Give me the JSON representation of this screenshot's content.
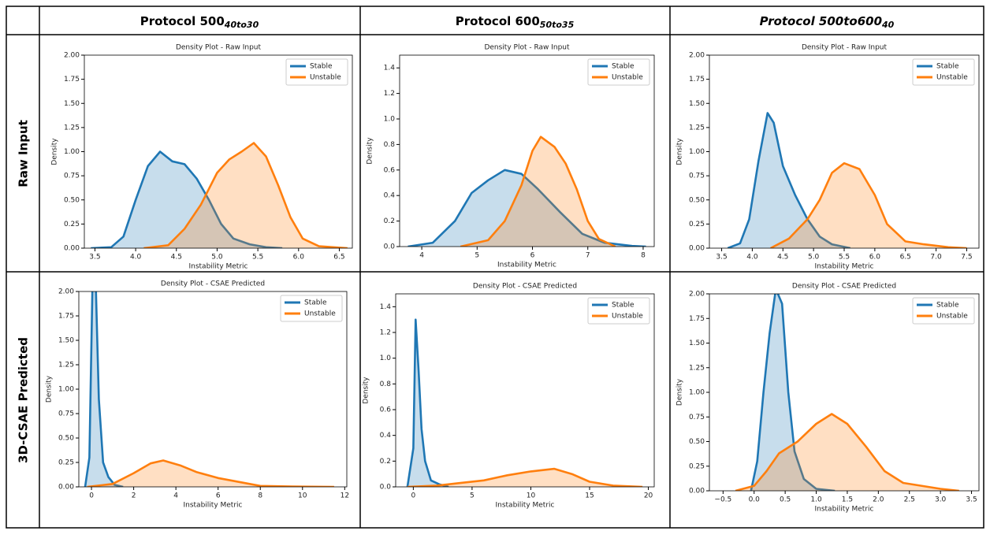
{
  "column_headers": [
    {
      "base": "Protocol 500",
      "sub": "40to30"
    },
    {
      "base": "Protocol 600",
      "sub": "50to35"
    },
    {
      "base": "Protocol 500to600",
      "sub": "40"
    }
  ],
  "row_headers": [
    "Raw Input",
    "3D-CSAE Predicted"
  ],
  "chart_data": [
    {
      "type": "density",
      "title": "Density Plot - Raw Input",
      "xlabel": "Instability Metric",
      "ylabel": "Density",
      "legend": "upper right",
      "xlim": [
        3.37,
        6.66
      ],
      "xticks": [
        3.5,
        {
          "value": 4,
          "label": "4.0"
        },
        4.5,
        {
          "value": 5,
          "label": "5.0"
        },
        5.5,
        {
          "value": 6,
          "label": "6.0"
        },
        6.5
      ],
      "ylim": [
        0,
        2
      ],
      "yticks": [
        {
          "value": 0,
          "label": "0.00"
        },
        0.25,
        {
          "value": 0.5,
          "label": "0.50"
        },
        0.75,
        {
          "value": 1,
          "label": "1.00"
        },
        1.25,
        {
          "value": 1.5,
          "label": "1.50"
        },
        1.75,
        {
          "value": 2,
          "label": "2.00"
        }
      ],
      "series": [
        {
          "name": "Stable",
          "color": "#1f77b4",
          "x": [
            3.45,
            3.7,
            3.85,
            4.0,
            4.15,
            4.3,
            4.45,
            4.6,
            4.75,
            4.9,
            5.05,
            5.2,
            5.4,
            5.6,
            5.8
          ],
          "values": [
            0,
            0.01,
            0.12,
            0.5,
            0.85,
            1.0,
            0.9,
            0.87,
            0.72,
            0.5,
            0.25,
            0.1,
            0.04,
            0.01,
            0
          ]
        },
        {
          "name": "Unstable",
          "color": "#ff7f0e",
          "x": [
            4.1,
            4.4,
            4.6,
            4.8,
            5.0,
            5.15,
            5.3,
            5.45,
            5.6,
            5.75,
            5.9,
            6.05,
            6.25,
            6.6
          ],
          "values": [
            0,
            0.03,
            0.2,
            0.45,
            0.78,
            0.92,
            1.0,
            1.09,
            0.95,
            0.65,
            0.32,
            0.1,
            0.02,
            0
          ]
        }
      ]
    },
    {
      "type": "density",
      "title": "Density Plot - Raw Input",
      "xlabel": "Instability Metric",
      "ylabel": "Density",
      "legend": "upper right",
      "xlim": [
        3.6,
        8.2
      ],
      "xticks": [
        4,
        5,
        6,
        7,
        8
      ],
      "ylim": [
        0,
        1.5
      ],
      "yticks": [
        {
          "value": 0,
          "label": "0.0"
        },
        0.2,
        0.4,
        0.6,
        0.8,
        {
          "value": 1,
          "label": "1.0"
        },
        1.2,
        1.4
      ],
      "series": [
        {
          "name": "Stable",
          "color": "#1f77b4",
          "x": [
            3.75,
            4.2,
            4.6,
            4.9,
            5.2,
            5.5,
            5.8,
            6.1,
            6.5,
            6.9,
            7.3,
            7.8,
            8.05
          ],
          "values": [
            0,
            0.03,
            0.2,
            0.42,
            0.52,
            0.6,
            0.57,
            0.45,
            0.27,
            0.1,
            0.03,
            0.005,
            0
          ]
        },
        {
          "name": "Unstable",
          "color": "#ff7f0e",
          "x": [
            4.7,
            5.2,
            5.5,
            5.8,
            6.0,
            6.15,
            6.4,
            6.6,
            6.8,
            7.0,
            7.2,
            7.5
          ],
          "values": [
            0,
            0.05,
            0.2,
            0.48,
            0.75,
            0.86,
            0.78,
            0.65,
            0.45,
            0.2,
            0.06,
            0
          ]
        }
      ]
    },
    {
      "type": "density",
      "title": "Density Plot - Raw Input",
      "xlabel": "Instability Metric",
      "ylabel": "Density",
      "legend": "upper right",
      "xlim": [
        3.3,
        7.7
      ],
      "xticks": [
        3.5,
        {
          "value": 4,
          "label": "4.0"
        },
        4.5,
        {
          "value": 5,
          "label": "5.0"
        },
        5.5,
        {
          "value": 6,
          "label": "6.0"
        },
        6.5,
        {
          "value": 7,
          "label": "7.0"
        },
        7.5
      ],
      "ylim": [
        0,
        2
      ],
      "yticks": [
        {
          "value": 0,
          "label": "0.00"
        },
        0.25,
        {
          "value": 0.5,
          "label": "0.50"
        },
        0.75,
        {
          "value": 1,
          "label": "1.00"
        },
        1.25,
        {
          "value": 1.5,
          "label": "1.50"
        },
        1.75,
        {
          "value": 2,
          "label": "2.00"
        }
      ],
      "series": [
        {
          "name": "Stable",
          "color": "#1f77b4",
          "x": [
            3.6,
            3.8,
            3.95,
            4.1,
            4.25,
            4.35,
            4.5,
            4.7,
            4.9,
            5.1,
            5.3,
            5.6
          ],
          "values": [
            0,
            0.05,
            0.3,
            0.9,
            1.4,
            1.3,
            0.85,
            0.55,
            0.3,
            0.12,
            0.04,
            0
          ]
        },
        {
          "name": "Unstable",
          "color": "#ff7f0e",
          "x": [
            4.3,
            4.6,
            4.9,
            5.1,
            5.3,
            5.5,
            5.75,
            6.0,
            6.2,
            6.5,
            6.8,
            7.2,
            7.5
          ],
          "values": [
            0,
            0.1,
            0.3,
            0.5,
            0.78,
            0.88,
            0.82,
            0.55,
            0.25,
            0.07,
            0.04,
            0.01,
            0
          ]
        }
      ]
    },
    {
      "type": "density",
      "title": "Density Plot - CSAE Predicted",
      "xlabel": "Instability Metric",
      "ylabel": "Density",
      "legend": "upper right",
      "xlim": [
        -0.6,
        12.1
      ],
      "xticks": [
        0,
        2,
        4,
        6,
        8,
        10,
        12
      ],
      "ylim": [
        0,
        2
      ],
      "yticks": [
        {
          "value": 0,
          "label": "0.00"
        },
        0.25,
        {
          "value": 0.5,
          "label": "0.50"
        },
        0.75,
        {
          "value": 1,
          "label": "1.00"
        },
        1.25,
        {
          "value": 1.5,
          "label": "1.50"
        },
        1.75,
        {
          "value": 2,
          "label": "2.00"
        }
      ],
      "series": [
        {
          "name": "Stable",
          "color": "#1f77b4",
          "x": [
            -0.3,
            -0.1,
            0.05,
            0.2,
            0.35,
            0.55,
            0.8,
            1.1,
            1.5
          ],
          "values": [
            0,
            0.3,
            2.1,
            2.1,
            0.9,
            0.25,
            0.1,
            0.02,
            0
          ]
        },
        {
          "name": "Unstable",
          "color": "#ff7f0e",
          "x": [
            -0.2,
            1.0,
            2.0,
            2.8,
            3.4,
            4.2,
            5.0,
            6.0,
            7.0,
            8.0,
            9.5,
            11.5
          ],
          "values": [
            0,
            0.03,
            0.14,
            0.24,
            0.27,
            0.22,
            0.15,
            0.09,
            0.05,
            0.01,
            0.003,
            0
          ]
        }
      ]
    },
    {
      "type": "density",
      "title": "Density Plot - CSAE Predicted",
      "xlabel": "Instability Metric",
      "ylabel": "Density",
      "legend": "upper right",
      "xlim": [
        -1.5,
        20.5
      ],
      "xticks": [
        0,
        5,
        10,
        15,
        20
      ],
      "ylim": [
        0,
        1.5
      ],
      "yticks": [
        {
          "value": 0,
          "label": "0.0"
        },
        0.2,
        0.4,
        0.6,
        0.8,
        {
          "value": 1,
          "label": "1.0"
        },
        1.2,
        1.4
      ],
      "series": [
        {
          "name": "Stable",
          "color": "#1f77b4",
          "x": [
            -0.5,
            0,
            0.2,
            0.45,
            0.7,
            1.0,
            1.5,
            2.2,
            3
          ],
          "values": [
            0,
            0.3,
            1.3,
            0.9,
            0.45,
            0.2,
            0.05,
            0.02,
            0
          ]
        },
        {
          "name": "Unstable",
          "color": "#ff7f0e",
          "x": [
            -0.5,
            2,
            4,
            6,
            8,
            10,
            12,
            13.5,
            15,
            17,
            19.5
          ],
          "values": [
            0,
            0.01,
            0.03,
            0.05,
            0.09,
            0.12,
            0.14,
            0.1,
            0.04,
            0.01,
            0
          ]
        }
      ]
    },
    {
      "type": "density",
      "title": "Density Plot - CSAE Predicted",
      "xlabel": "Instability Metric",
      "ylabel": "Density",
      "legend": "upper right",
      "xlim": [
        -0.72,
        3.62
      ],
      "xticks": [
        {
          "value": -0.5,
          "label": "−0.5"
        },
        {
          "value": 0,
          "label": "0.0"
        },
        0.5,
        {
          "value": 1,
          "label": "1.0"
        },
        1.5,
        {
          "value": 2,
          "label": "2.0"
        },
        2.5,
        {
          "value": 3,
          "label": "3.0"
        },
        3.5
      ],
      "ylim": [
        0,
        2
      ],
      "yticks": [
        {
          "value": 0,
          "label": "0.00"
        },
        0.25,
        {
          "value": 0.5,
          "label": "0.50"
        },
        0.75,
        {
          "value": 1,
          "label": "1.00"
        },
        1.25,
        {
          "value": 1.5,
          "label": "1.50"
        },
        1.75,
        {
          "value": 2,
          "label": "2.00"
        }
      ],
      "series": [
        {
          "name": "Stable",
          "color": "#1f77b4",
          "x": [
            -0.05,
            0.05,
            0.15,
            0.25,
            0.35,
            0.45,
            0.55,
            0.65,
            0.8,
            1.0,
            1.3
          ],
          "values": [
            0,
            0.3,
            1.0,
            1.6,
            2.05,
            1.9,
            1.0,
            0.4,
            0.12,
            0.02,
            0
          ]
        },
        {
          "name": "Unstable",
          "color": "#ff7f0e",
          "x": [
            -0.3,
            0,
            0.2,
            0.4,
            0.7,
            1.0,
            1.25,
            1.5,
            1.8,
            2.1,
            2.4,
            2.8,
            3.0,
            3.3
          ],
          "values": [
            0,
            0.05,
            0.2,
            0.38,
            0.5,
            0.68,
            0.78,
            0.68,
            0.45,
            0.2,
            0.08,
            0.04,
            0.02,
            0
          ]
        }
      ]
    }
  ]
}
